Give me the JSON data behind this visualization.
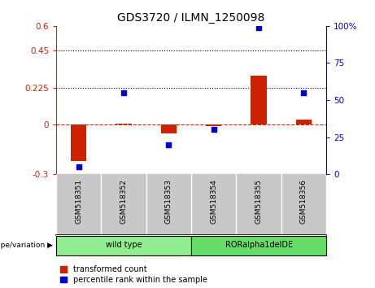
{
  "title": "GDS3720 / ILMN_1250098",
  "samples": [
    "GSM518351",
    "GSM518352",
    "GSM518353",
    "GSM518354",
    "GSM518355",
    "GSM518356"
  ],
  "transformed_counts": [
    -0.22,
    0.005,
    -0.05,
    -0.01,
    0.3,
    0.03
  ],
  "percentile_ranks": [
    5,
    55,
    20,
    30,
    99,
    55
  ],
  "groups": [
    {
      "label": "wild type",
      "indices": [
        0,
        1,
        2
      ],
      "color": "#90EE90"
    },
    {
      "label": "RORalpha1delDE",
      "indices": [
        3,
        4,
        5
      ],
      "color": "#66DD66"
    }
  ],
  "ylim_left": [
    -0.3,
    0.6
  ],
  "ylim_right": [
    0,
    100
  ],
  "yticks_left": [
    -0.3,
    0.0,
    0.225,
    0.45,
    0.6
  ],
  "yticks_left_labels": [
    "-0.3",
    "0",
    "0.225",
    "0.45",
    "0.6"
  ],
  "yticks_right": [
    0,
    25,
    50,
    75,
    100
  ],
  "yticks_right_labels": [
    "0",
    "25",
    "50",
    "75",
    "100%"
  ],
  "hlines": [
    0.225,
    0.45
  ],
  "bar_color": "#CC2200",
  "scatter_color": "#0000CC",
  "legend_labels": [
    "transformed count",
    "percentile rank within the sample"
  ],
  "background_color": "#FFFFFF",
  "label_panel_color": "#C8C8C8",
  "group_border_color": "#000000",
  "bar_width": 0.35,
  "scatter_size": 20,
  "title_fontsize": 10,
  "axis_fontsize": 7.5,
  "label_fontsize": 6.5,
  "legend_fontsize": 7,
  "genotype_label": "genotype/variation"
}
